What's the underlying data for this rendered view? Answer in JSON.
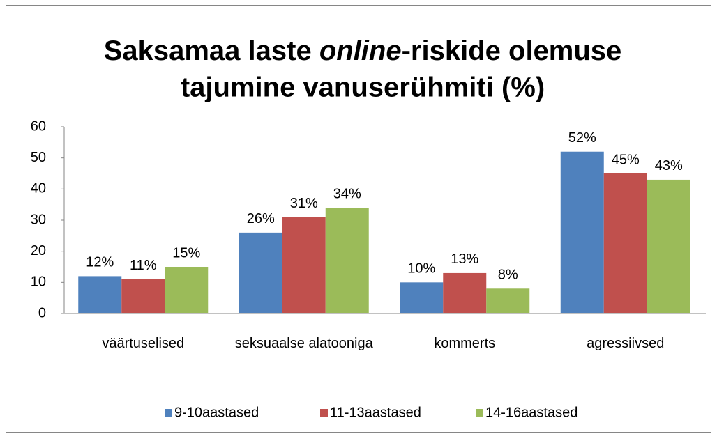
{
  "chart_data": {
    "type": "bar",
    "title": [
      "Saksamaa laste ",
      "online",
      "-riskide olemuse",
      "tajumine vanuserühmiti (%)"
    ],
    "categories": [
      "väärtuselised",
      "seksuaalse alatooniga",
      "kommerts",
      "agressiivsed"
    ],
    "series": [
      {
        "name": "9-10aastased",
        "color": "#4f81bd",
        "values": [
          12,
          26,
          10,
          52
        ],
        "value_labels": [
          "12%",
          "26%",
          "10%",
          "52%"
        ]
      },
      {
        "name": "11-13aastased",
        "color": "#c0504d",
        "values": [
          11,
          31,
          13,
          45
        ],
        "value_labels": [
          "11%",
          "31%",
          "13%",
          "45%"
        ]
      },
      {
        "name": "14-16aastased",
        "color": "#9bbb59",
        "values": [
          15,
          34,
          8,
          43
        ],
        "value_labels": [
          "15%",
          "34%",
          "8%",
          "43%"
        ]
      }
    ],
    "ylim": [
      0,
      60
    ],
    "yticks": [
      0,
      10,
      20,
      30,
      40,
      50,
      60
    ],
    "grid": false,
    "legend": "bottom"
  }
}
